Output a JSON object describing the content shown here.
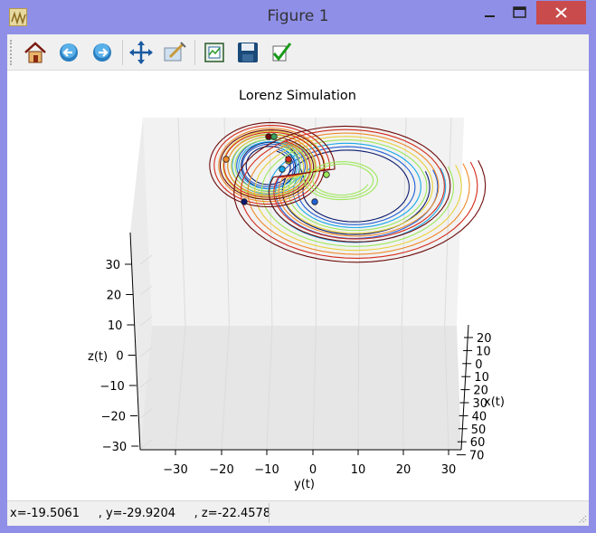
{
  "window": {
    "title": "Figure 1"
  },
  "toolbar": {
    "buttons": [
      {
        "name": "home-icon"
      },
      {
        "name": "back-icon"
      },
      {
        "name": "forward-icon"
      },
      {
        "name": "pan-icon"
      },
      {
        "name": "zoom-icon"
      },
      {
        "name": "configure-subplots-icon"
      },
      {
        "name": "save-icon"
      },
      {
        "name": "edit-axis-icon"
      }
    ]
  },
  "status": {
    "text": "x=-19.5061     , y=-29.9204     , z=-22.4578"
  },
  "chart_data": {
    "type": "line",
    "title": "Lorenz Simulation",
    "xlabel": "x(t)",
    "ylabel": "y(t)",
    "zlabel": "z(t)",
    "x_ticks": [
      "20",
      "10",
      "0",
      "10",
      "20",
      "30",
      "40",
      "50",
      "60",
      "70"
    ],
    "y_ticks": [
      "−30",
      "−20",
      "−10",
      "0",
      "10",
      "20",
      "30"
    ],
    "z_ticks": [
      "30",
      "20",
      "10",
      "0",
      "−10",
      "−20",
      "−30"
    ],
    "series_colors": [
      "#0a1a6e",
      "#1f5fd6",
      "#16a9e8",
      "#9de85a",
      "#e8d23a",
      "#f08a2a",
      "#d42a1a",
      "#6e0a0a"
    ],
    "marker_colors": [
      "#0a1a6e",
      "#1f5fd6",
      "#16a9e8",
      "#9de85a",
      "#e8d23a",
      "#f08a2a",
      "#d42a1a",
      "#6e0a0a",
      "#3aa05a"
    ]
  }
}
